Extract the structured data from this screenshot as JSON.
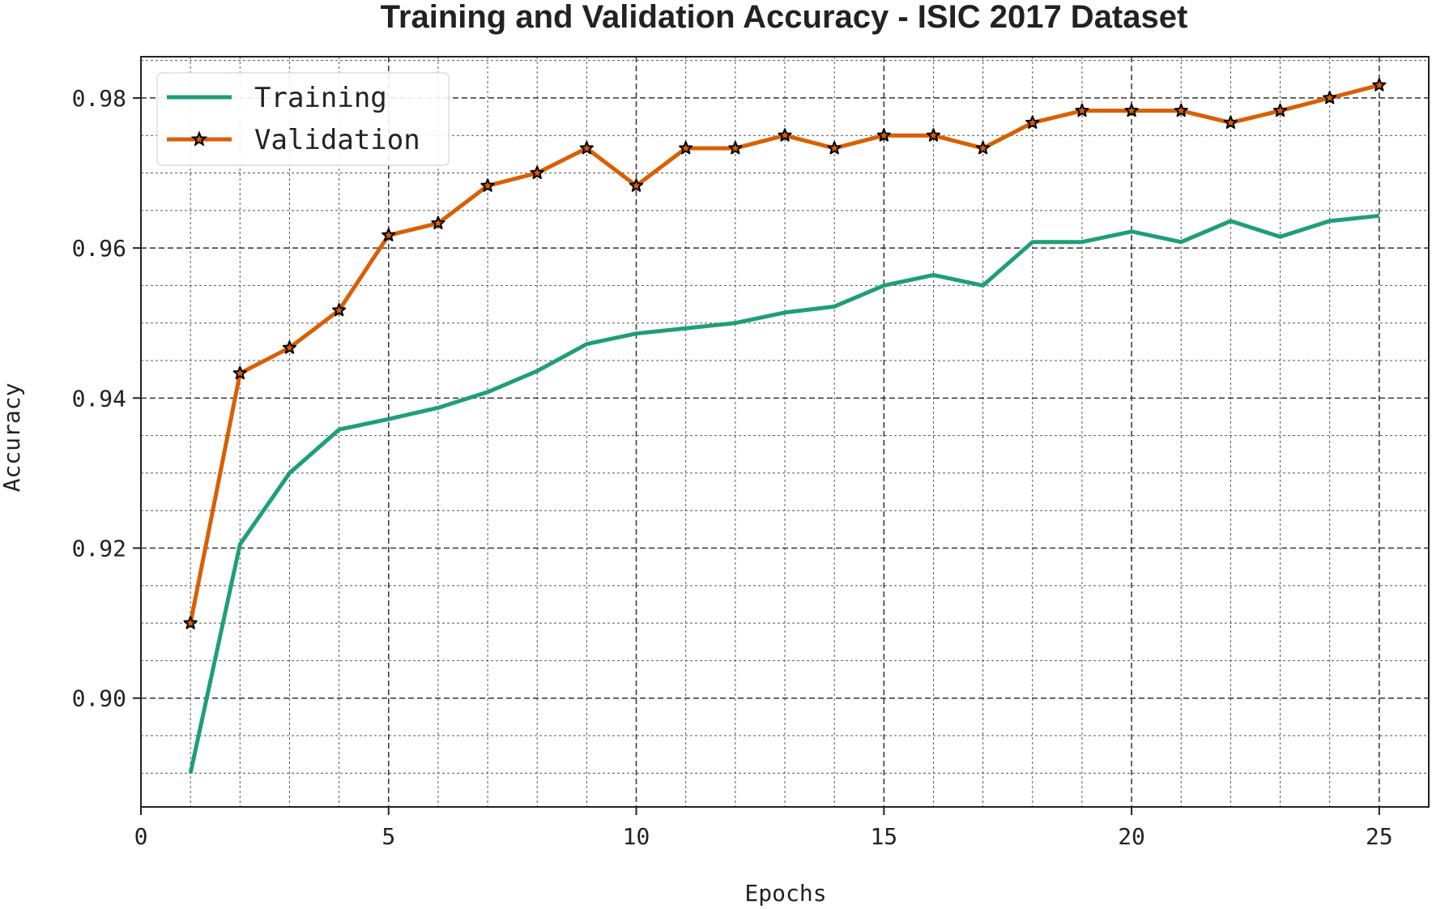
{
  "chart_data": {
    "type": "line",
    "title": "Training and Validation Accuracy - ISIC 2017 Dataset",
    "xlabel": "Epochs",
    "ylabel": "Accuracy",
    "xlim": [
      0,
      26
    ],
    "ylim": [
      0.8855,
      0.9855
    ],
    "x_major_ticks": [
      0,
      5,
      10,
      15,
      20,
      25
    ],
    "x_tick_labels": [
      "0",
      "5",
      "10",
      "15",
      "20",
      "25"
    ],
    "y_major_ticks": [
      0.9,
      0.92,
      0.94,
      0.96,
      0.98
    ],
    "y_tick_labels": [
      "0.90",
      "0.92",
      "0.94",
      "0.96",
      "0.98"
    ],
    "x_minor_step": 1,
    "y_minor_step": 0.005,
    "grid": true,
    "legend_position": "top-left",
    "x": [
      1,
      2,
      3,
      4,
      5,
      6,
      7,
      8,
      9,
      10,
      11,
      12,
      13,
      14,
      15,
      16,
      17,
      18,
      19,
      20,
      21,
      22,
      23,
      24,
      25
    ],
    "series": [
      {
        "name": "Training",
        "color": "#1f9e77",
        "marker": "none",
        "values": [
          0.89,
          0.9205,
          0.93,
          0.9358,
          0.9372,
          0.9387,
          0.9408,
          0.9436,
          0.9472,
          0.9486,
          0.9493,
          0.95,
          0.9514,
          0.9522,
          0.955,
          0.9564,
          0.955,
          0.9608,
          0.9608,
          0.9622,
          0.9608,
          0.9636,
          0.9615,
          0.9636,
          0.9643
        ]
      },
      {
        "name": "Validation",
        "color": "#d95f02",
        "marker": "star",
        "values": [
          0.91,
          0.9433,
          0.9467,
          0.9517,
          0.9617,
          0.9633,
          0.9683,
          0.97,
          0.9733,
          0.9683,
          0.9733,
          0.9733,
          0.975,
          0.9733,
          0.975,
          0.975,
          0.9733,
          0.9767,
          0.9783,
          0.9783,
          0.9783,
          0.9767,
          0.9783,
          0.98,
          0.9817
        ]
      }
    ]
  }
}
